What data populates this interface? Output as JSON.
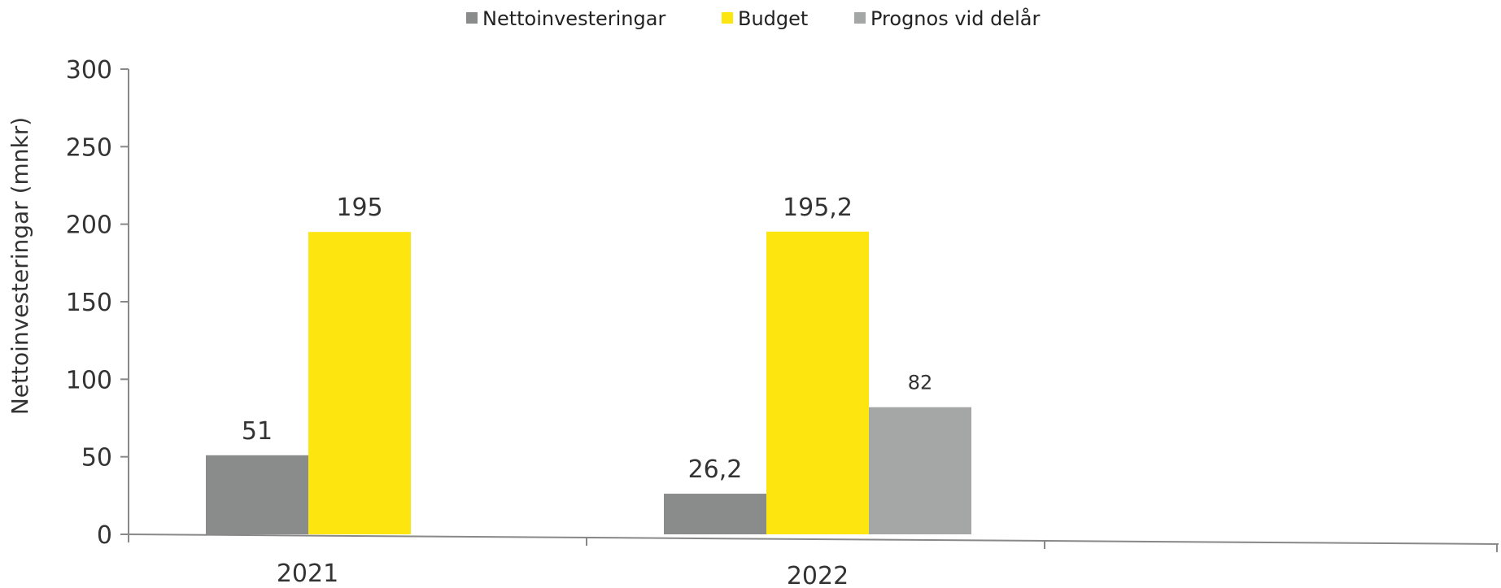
{
  "chart_data": {
    "type": "bar",
    "categories": [
      "2021",
      "2022"
    ],
    "series": [
      {
        "name": "Nettoinvesteringar",
        "values": [
          51,
          26.2
        ],
        "labels": [
          "51",
          "26,2"
        ],
        "color": "#8a8c8b"
      },
      {
        "name": "Budget",
        "values": [
          195,
          195.2
        ],
        "labels": [
          "195",
          "195,2"
        ],
        "color": "#fde60f"
      },
      {
        "name": "Prognos vid delår",
        "values": [
          null,
          82
        ],
        "labels": [
          "",
          "82"
        ],
        "color": "#a5a7a6"
      }
    ],
    "title": "",
    "xlabel": "",
    "ylabel": "Nettoinvesteringar (mnkr)",
    "ylim": [
      0,
      300
    ],
    "yticks": [
      "0",
      "50",
      "100",
      "150",
      "200",
      "250",
      "300"
    ],
    "grid": false,
    "legend": "top-center",
    "axis_color": "#888888"
  }
}
